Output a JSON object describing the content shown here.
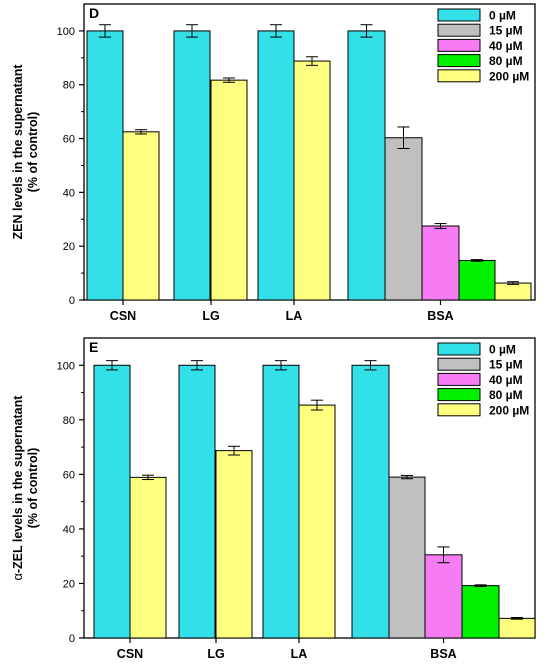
{
  "chart_data": [
    {
      "type": "bar",
      "panel_label": "D",
      "ylabel": "ZEN levels in the supernatant",
      "ylabel2": "(% of control)",
      "ylim": [
        0,
        110
      ],
      "yticks": [
        0,
        20,
        40,
        60,
        80,
        100
      ],
      "groups": [
        {
          "label": "CSN",
          "bars": [
            {
              "series": "0 µM",
              "value": 100,
              "error": 2.3
            },
            {
              "series": "200 µM",
              "value": 62.5,
              "error": 0.8
            }
          ]
        },
        {
          "label": "LG",
          "bars": [
            {
              "series": "0 µM",
              "value": 100,
              "error": 2.3
            },
            {
              "series": "200 µM",
              "value": 81.7,
              "error": 0.8
            }
          ]
        },
        {
          "label": "LA",
          "bars": [
            {
              "series": "0 µM",
              "value": 100,
              "error": 2.3
            },
            {
              "series": "200 µM",
              "value": 88.8,
              "error": 1.6
            }
          ]
        },
        {
          "label": "BSA",
          "bars": [
            {
              "series": "0 µM",
              "value": 100,
              "error": 2.3
            },
            {
              "series": "15 µM",
              "value": 60.3,
              "error": 4.0
            },
            {
              "series": "40 µM",
              "value": 27.5,
              "error": 0.9
            },
            {
              "series": "80 µM",
              "value": 14.7,
              "error": 0.3
            },
            {
              "series": "200 µM",
              "value": 6.3,
              "error": 0.5
            }
          ]
        }
      ],
      "legend_position": "top-right",
      "grid": false
    },
    {
      "type": "bar",
      "panel_label": "E",
      "ylabel_prefix": "α",
      "ylabel": "-ZEL levels in the supernatant",
      "ylabel2": "(% of control)",
      "ylim": [
        0,
        110
      ],
      "yticks": [
        0,
        20,
        40,
        60,
        80,
        100
      ],
      "groups": [
        {
          "label": "CSN",
          "bars": [
            {
              "series": "0 µM",
              "value": 100,
              "error": 1.7
            },
            {
              "series": "200 µM",
              "value": 58.9,
              "error": 0.8
            }
          ]
        },
        {
          "label": "LG",
          "bars": [
            {
              "series": "0 µM",
              "value": 100,
              "error": 1.7
            },
            {
              "series": "200 µM",
              "value": 68.7,
              "error": 1.6
            }
          ]
        },
        {
          "label": "LA",
          "bars": [
            {
              "series": "0 µM",
              "value": 100,
              "error": 1.7
            },
            {
              "series": "200 µM",
              "value": 85.4,
              "error": 1.8
            }
          ]
        },
        {
          "label": "BSA",
          "bars": [
            {
              "series": "0 µM",
              "value": 100,
              "error": 1.7
            },
            {
              "series": "15 µM",
              "value": 59.0,
              "error": 0.6
            },
            {
              "series": "40 µM",
              "value": 30.5,
              "error": 2.9
            },
            {
              "series": "80 µM",
              "value": 19.2,
              "error": 0.3
            },
            {
              "series": "200 µM",
              "value": 7.2,
              "error": 0.3
            }
          ]
        }
      ],
      "legend_position": "top-right",
      "grid": false
    }
  ],
  "series_colors": {
    "0 µM": "#33E0E8",
    "15 µM": "#C0C0C0",
    "40 µM": "#F57CF2",
    "80 µM": "#00F000",
    "200 µM": "#FFFF80"
  },
  "legend": [
    "0 µM",
    "15 µM",
    "40 µM",
    "80 µM",
    "200 µM"
  ]
}
